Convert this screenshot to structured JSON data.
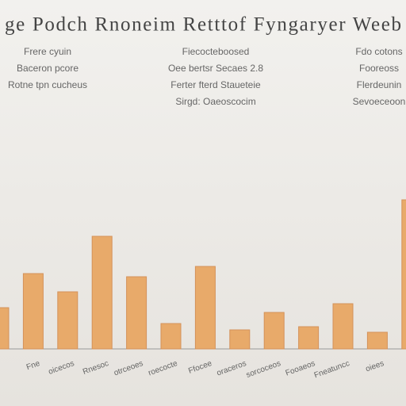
{
  "chart_data": {
    "type": "bar",
    "title": "ge Podch Rnoneim Retttof Fyngaryer Weeb",
    "annotations": [
      [
        "Frere cyuin",
        "Baceron pcore",
        "Rotne tpn cucheus"
      ],
      [
        "Fiecocteboosed",
        "Oee bertsr Secaes 2.8",
        "Ferter fterd Staueteie",
        "Sirgd: Oaeoscocim"
      ],
      [
        "Fdo cotons",
        "Fooreoss",
        "Flerdeunin",
        "Sevoeceoon"
      ]
    ],
    "categories": [
      null,
      "Fne",
      "oicecos",
      "Rnesoc",
      "otrceoes",
      "roecocte",
      "Ffocee",
      "oraceros",
      "sorcoceos",
      "Fooaeos",
      "Fneatuncc",
      "oiees",
      null
    ],
    "values": [
      52,
      95,
      72,
      142,
      91,
      32,
      104,
      24,
      46,
      28,
      57,
      21,
      188
    ],
    "color": "#e8aa6a"
  }
}
